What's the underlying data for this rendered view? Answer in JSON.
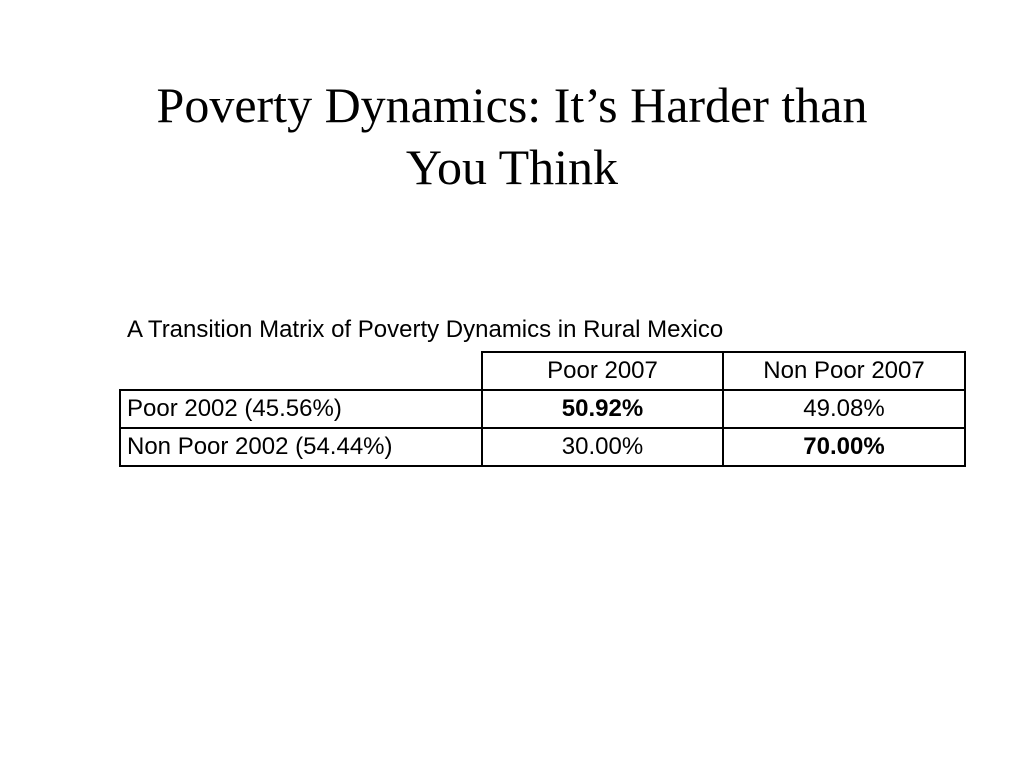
{
  "slide": {
    "title_lines": [
      "Poverty Dynamics:  It’s Harder than",
      "You Think"
    ]
  },
  "table": {
    "caption": "A Transition Matrix of Poverty Dynamics in Rural Mexico",
    "column_headers": [
      "",
      "Poor 2007",
      "Non Poor 2007"
    ],
    "rows": [
      {
        "label": "Poor 2002 (45.56%)",
        "cells": [
          "50.92%",
          "49.08%"
        ],
        "bold": [
          true,
          false
        ]
      },
      {
        "label": "Non Poor 2002 (54.44%)",
        "cells": [
          "30.00%",
          "70.00%"
        ],
        "bold": [
          false,
          true
        ]
      }
    ]
  }
}
